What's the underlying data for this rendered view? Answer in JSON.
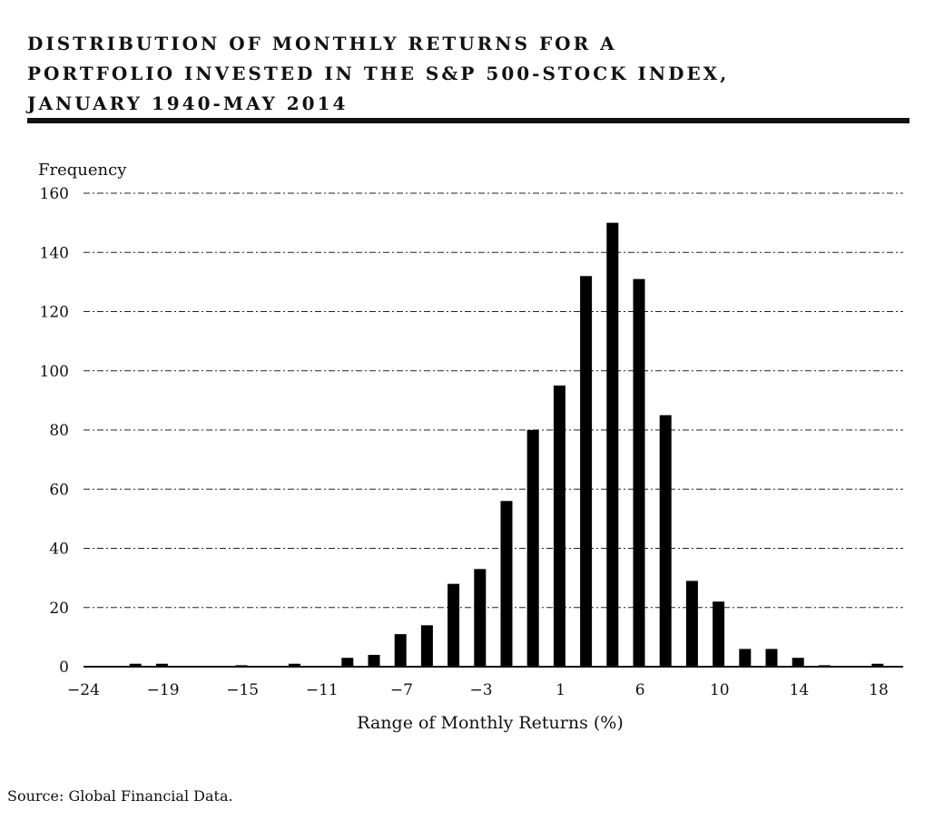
{
  "chart_data": {
    "type": "bar",
    "title_lines": [
      "DISTRIBUTION OF MONTHLY RETURNS FOR A",
      "PORTFOLIO INVESTED IN THE S&P 500-STOCK INDEX,",
      "JANUARY 1940-MAY 2014"
    ],
    "ylabel": "Frequency",
    "xlabel": "Range of Monthly Returns (%)",
    "ylim": [
      0,
      160
    ],
    "yticks": [
      0,
      20,
      40,
      60,
      80,
      100,
      120,
      140,
      160
    ],
    "ytick_labels": [
      "0",
      "20",
      "40",
      "60",
      "80",
      "100",
      "120",
      "140",
      "160"
    ],
    "xticks": [
      {
        "label": "-24",
        "index": 0
      },
      {
        "label": "-19",
        "index": 3
      },
      {
        "label": "-15",
        "index": 6
      },
      {
        "label": "-11",
        "index": 9
      },
      {
        "label": "-7",
        "index": 12
      },
      {
        "label": "-3",
        "index": 15
      },
      {
        "label": "1",
        "index": 18
      },
      {
        "label": "6",
        "index": 21
      },
      {
        "label": "10",
        "index": 24
      },
      {
        "label": "14",
        "index": 27
      },
      {
        "label": "18",
        "index": 30
      }
    ],
    "values": [
      0,
      1,
      1,
      0,
      0,
      0.5,
      0,
      1,
      0,
      3,
      4,
      11,
      14,
      28,
      33,
      56,
      80,
      95,
      132,
      150,
      131,
      85,
      29,
      22,
      6,
      6,
      3,
      0.5,
      0,
      1,
      0
    ],
    "grid": true,
    "grid_style": "dash-dot"
  },
  "source": "Source: Global Financial Data."
}
